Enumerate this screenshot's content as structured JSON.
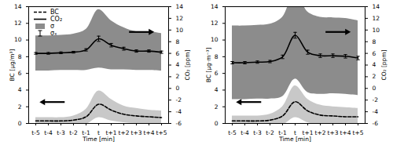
{
  "chart_data": [
    {
      "type": "line",
      "categories": [
        "t-5",
        "t-4",
        "t-3",
        "t-2",
        "t-1",
        "t",
        "t+1",
        "t+2",
        "t+3",
        "t+4",
        "t+5"
      ],
      "xlabel": "Time [min]",
      "ylabel": "BC [µg/m³]",
      "y2label": "CO₂ [ppm]",
      "ylim": [
        0,
        14
      ],
      "yticks": [
        0,
        2,
        4,
        6,
        8,
        10,
        12,
        14
      ],
      "y2lim": [
        -6,
        14
      ],
      "y2ticks": [
        -6,
        -4,
        -2,
        0,
        2,
        4,
        6,
        8,
        10,
        12,
        14
      ],
      "legend": "upper left",
      "series": [
        {
          "name": "BC",
          "color": "#000000",
          "line_style": "dashed",
          "values": [
            0.3,
            0.3,
            0.3,
            0.4,
            0.8,
            2.3,
            1.6,
            1.1,
            0.9,
            0.8,
            0.7
          ],
          "sigma": {
            "color": "#c8c8c8",
            "values": [
              0.4,
              0.4,
              0.4,
              0.5,
              0.9,
              1.6,
              1.3,
              1.0,
              0.9,
              0.8,
              0.8
            ]
          }
        },
        {
          "name": "CO₂",
          "axis": "y2",
          "color": "#000000",
          "line_style": "solid",
          "values": [
            6.0,
            6.0,
            6.1,
            6.2,
            6.6,
            8.5,
            7.4,
            6.8,
            6.4,
            6.4,
            6.2
          ],
          "sigma": {
            "name": "σ",
            "color": "#8c8c8c",
            "values": [
              3.0,
              3.0,
              3.0,
              3.1,
              3.5,
              5.0,
              4.2,
              3.6,
              3.3,
              3.3,
              3.2
            ]
          },
          "sigma_x": {
            "name": "σₓ",
            "values": [
              0.15,
              0.15,
              0.15,
              0.15,
              0.2,
              0.45,
              0.3,
              0.25,
              0.2,
              0.2,
              0.2
            ]
          }
        }
      ]
    },
    {
      "type": "line",
      "categories": [
        "t-5",
        "t-4",
        "t-3",
        "t-2",
        "t-1",
        "t",
        "t+1",
        "t+2",
        "t+3",
        "t+4",
        "t+5"
      ],
      "xlabel": "Time [min]",
      "ylabel": "BC [µg·m⁻³]",
      "y2label": "CO₂ [ppm]",
      "ylim": [
        0,
        14
      ],
      "yticks": [
        0,
        2,
        4,
        6,
        8,
        10,
        12,
        14
      ],
      "y2lim": [
        -6,
        14
      ],
      "y2ticks": [
        -6,
        -4,
        -2,
        0,
        2,
        4,
        6,
        8,
        10,
        12,
        14
      ],
      "series": [
        {
          "color": "#000000",
          "line_style": "dashed",
          "values": [
            0.3,
            0.3,
            0.3,
            0.4,
            0.9,
            2.6,
            1.5,
            1.0,
            0.9,
            0.8,
            0.8
          ],
          "sigma": {
            "color": "#c8c8c8",
            "values": [
              0.6,
              0.6,
              0.6,
              0.7,
              1.1,
              1.9,
              1.4,
              1.2,
              1.1,
              1.1,
              1.0
            ]
          }
        },
        {
          "axis": "y2",
          "color": "#000000",
          "line_style": "solid",
          "values": [
            4.4,
            4.4,
            4.5,
            4.6,
            5.4,
            9.1,
            6.2,
            5.6,
            5.6,
            5.5,
            5.2
          ],
          "sigma": {
            "color": "#8c8c8c",
            "values": [
              6.3,
              6.3,
              6.3,
              6.4,
              6.8,
              7.5,
              6.9,
              6.6,
              6.5,
              6.5,
              6.4
            ]
          },
          "sigma_x": {
            "values": [
              0.2,
              0.2,
              0.2,
              0.2,
              0.3,
              0.5,
              0.35,
              0.3,
              0.3,
              0.3,
              0.3
            ]
          }
        }
      ]
    }
  ]
}
